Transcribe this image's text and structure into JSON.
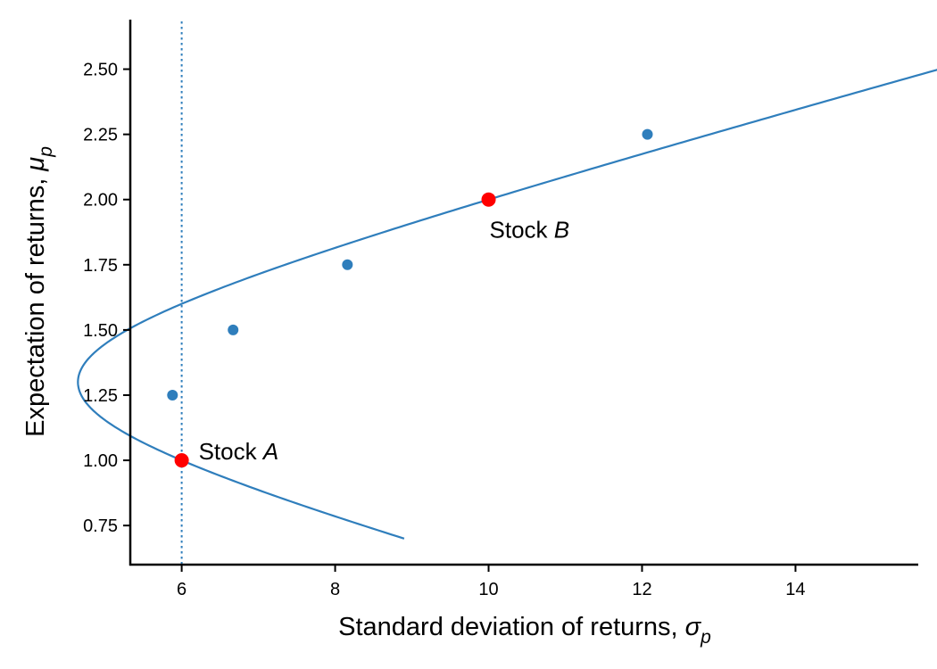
{
  "chart_data": {
    "type": "line",
    "title": "",
    "xlabel": "Standard deviation of returns, ",
    "xlabel_symbol": "σ",
    "xlabel_subscript": "p",
    "ylabel": "Expectation of returns, ",
    "ylabel_symbol": "μ",
    "ylabel_subscript": "p",
    "xlim": [
      5.33,
      15.6
    ],
    "ylim": [
      0.6,
      2.69
    ],
    "xticks": [
      6,
      8,
      10,
      12,
      14
    ],
    "xtick_labels": [
      "6",
      "8",
      "10",
      "12",
      "14"
    ],
    "yticks": [
      0.75,
      1.0,
      1.25,
      1.5,
      1.75,
      2.0,
      2.25,
      2.5
    ],
    "ytick_labels": [
      "0.75",
      "1.00",
      "1.25",
      "1.50",
      "1.75",
      "2.00",
      "2.25",
      "2.50"
    ],
    "grid": false,
    "frontier": {
      "stock_a": {
        "mu": 1.0,
        "sigma": 6.0
      },
      "stock_b": {
        "mu": 2.0,
        "sigma": 10.0
      },
      "correlation": -0.2,
      "mu_range": [
        0.7,
        2.6
      ]
    },
    "frontier_color": "#2f7ebc",
    "vertical_reference_line": {
      "x": 6.0,
      "style": "dotted",
      "color": "#2f7ebc"
    },
    "marked_points": [
      {
        "x": 5.88,
        "y": 1.25
      },
      {
        "x": 6.67,
        "y": 1.5
      },
      {
        "x": 8.16,
        "y": 1.75
      },
      {
        "x": 12.07,
        "y": 2.25
      }
    ],
    "marked_point_color": "#2f7ebc",
    "stock_points": [
      {
        "x": 6.0,
        "y": 1.0,
        "label_prefix": "Stock ",
        "label_symbol": "A",
        "label_position": "right"
      },
      {
        "x": 10.0,
        "y": 2.0,
        "label_prefix": "Stock ",
        "label_symbol": "B",
        "label_position": "below-right"
      }
    ],
    "stock_point_color": "#ff0000"
  }
}
